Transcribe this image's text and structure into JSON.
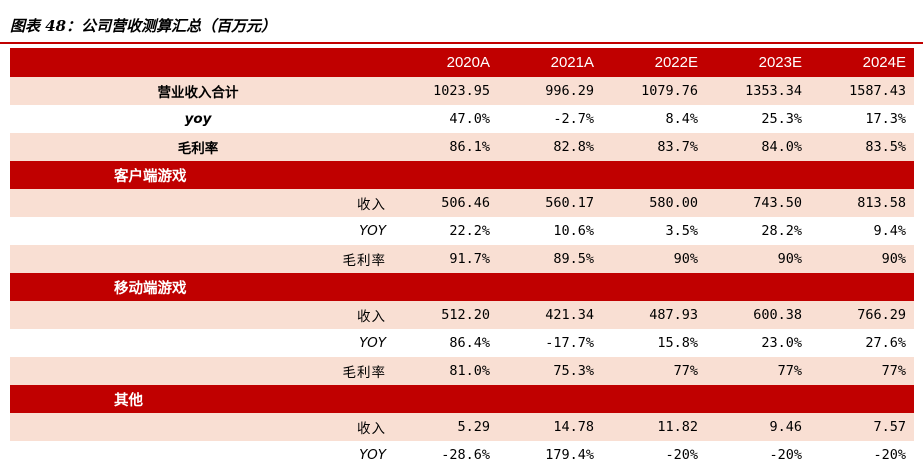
{
  "title": "图表 48：公司营收测算汇总（百万元）",
  "header": [
    "",
    "2020A",
    "2021A",
    "2022E",
    "2023E",
    "2024E"
  ],
  "rows": [
    {
      "kind": "total",
      "label": "营业收入合计",
      "values": [
        "1023.95",
        "996.29",
        "1079.76",
        "1353.34",
        "1587.43"
      ],
      "shade": true
    },
    {
      "kind": "total-yoy",
      "label": "yoy",
      "values": [
        "47.0%",
        "-2.7%",
        "8.4%",
        "25.3%",
        "17.3%"
      ],
      "shade": false
    },
    {
      "kind": "total",
      "label": "毛利率",
      "values": [
        "86.1%",
        "82.8%",
        "83.7%",
        "84.0%",
        "83.5%"
      ],
      "shade": true
    },
    {
      "kind": "section",
      "label": "客户端游戏"
    },
    {
      "kind": "sub",
      "label": "收入",
      "values": [
        "506.46",
        "560.17",
        "580.00",
        "743.50",
        "813.58"
      ],
      "shade": true
    },
    {
      "kind": "sub-yoy",
      "label": "YOY",
      "values": [
        "22.2%",
        "10.6%",
        "3.5%",
        "28.2%",
        "9.4%"
      ],
      "shade": false
    },
    {
      "kind": "sub",
      "label": "毛利率",
      "values": [
        "91.7%",
        "89.5%",
        "90%",
        "90%",
        "90%"
      ],
      "shade": true
    },
    {
      "kind": "section",
      "label": "移动端游戏"
    },
    {
      "kind": "sub",
      "label": "收入",
      "values": [
        "512.20",
        "421.34",
        "487.93",
        "600.38",
        "766.29"
      ],
      "shade": true
    },
    {
      "kind": "sub-yoy",
      "label": "YOY",
      "values": [
        "86.4%",
        "-17.7%",
        "15.8%",
        "23.0%",
        "27.6%"
      ],
      "shade": false
    },
    {
      "kind": "sub",
      "label": "毛利率",
      "values": [
        "81.0%",
        "75.3%",
        "77%",
        "77%",
        "77%"
      ],
      "shade": true
    },
    {
      "kind": "section",
      "label": "其他"
    },
    {
      "kind": "sub",
      "label": "收入",
      "values": [
        "5.29",
        "14.78",
        "11.82",
        "9.46",
        "7.57"
      ],
      "shade": true
    },
    {
      "kind": "sub-yoy",
      "label": "YOY",
      "values": [
        "-28.6%",
        "179.4%",
        "-20%",
        "-20%",
        "-20%"
      ],
      "shade": false
    }
  ],
  "colors": {
    "header_bg": "#c00000",
    "shade_bg": "#f9dfd3",
    "rule": "#c00000"
  }
}
